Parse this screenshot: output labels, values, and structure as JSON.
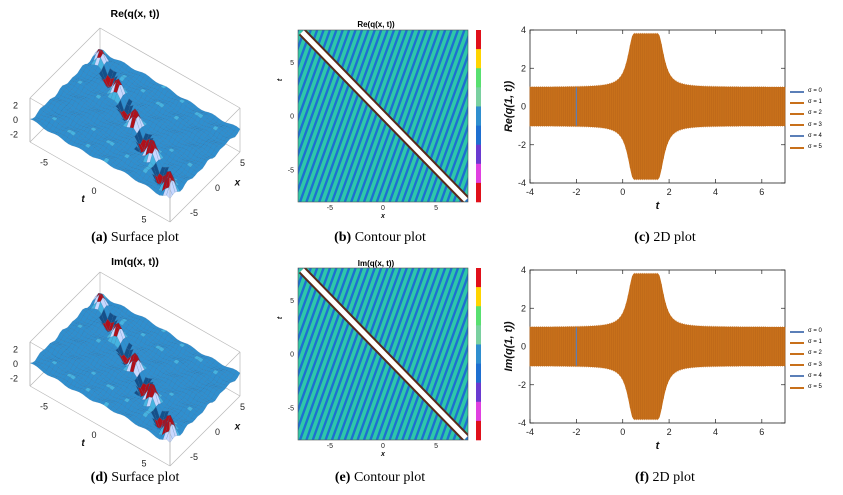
{
  "panels": {
    "a": {
      "title": "Re(q(x, t))",
      "caption_label": "(a)",
      "caption_text": "Surface plot"
    },
    "b": {
      "title": "Re(q(x, t))",
      "caption_label": "(b)",
      "caption_text": "Contour plot"
    },
    "c": {
      "title": "",
      "caption_label": "(c)",
      "caption_text": "2D plot"
    },
    "d": {
      "title": "Im(q(x, t))",
      "caption_label": "(d)",
      "caption_text": "Surface plot"
    },
    "e": {
      "title": "Im(q(x, t))",
      "caption_label": "(e)",
      "caption_text": "Contour plot"
    },
    "f": {
      "title": "",
      "caption_label": "(f)",
      "caption_text": "2D plot"
    }
  },
  "colors": {
    "surface_base": "#2f8fcf",
    "surface_dark": "#14508a",
    "surface_peak": "#b0101a",
    "contour_green": "#2fc7a8",
    "contour_blue": "#1e6fd0",
    "contour_white": "#ffffff",
    "line_orange": "#c8701a",
    "line_blue": "#5b7fb8",
    "colorbar": [
      "#e0101a",
      "#ffd400",
      "#58e070",
      "#7ad0a0",
      "#2f8fcf",
      "#1e6fd0",
      "#6a3ad0",
      "#e040e0",
      "#e0101a"
    ]
  },
  "chart_data": [
    {
      "id": "a",
      "type": "surface",
      "title": "Re(q(x, t))",
      "zticks": [
        "2",
        "0",
        "-2"
      ],
      "tticks": [
        "-5",
        "0",
        "5"
      ],
      "xticks": [
        "5",
        "0",
        "-5"
      ],
      "tlabel": "t",
      "xlabel": "x",
      "zlim": [
        -3,
        3
      ],
      "trange": [
        -7,
        7
      ],
      "xrange": [
        -7,
        7
      ]
    },
    {
      "id": "b",
      "type": "contour",
      "title": "Re(q(x, t))",
      "xticks": [
        "-5",
        "0",
        "5"
      ],
      "yticks": [
        "5",
        "0",
        "-5"
      ],
      "xlabel": "x",
      "ylabel": "t",
      "xlim": [
        -8,
        8
      ],
      "ylim": [
        -8,
        8
      ]
    },
    {
      "id": "c",
      "type": "line",
      "xlabel": "t",
      "ylabel": "Re(q(1, t))",
      "xlim": [
        -4,
        7
      ],
      "ylim": [
        -4,
        4
      ],
      "xticks": [
        "-4",
        "-2",
        "0",
        "2",
        "4",
        "6"
      ],
      "yticks": [
        "4",
        "2",
        "0",
        "-2",
        "-4"
      ],
      "envelope": {
        "base": 1.0,
        "peak": 3.8,
        "peak_range": [
          0.5,
          1.5
        ]
      },
      "series": [
        {
          "name": "σ = 0"
        },
        {
          "name": "σ = 1"
        },
        {
          "name": "σ = 2"
        },
        {
          "name": "σ = 3"
        },
        {
          "name": "σ = 4"
        },
        {
          "name": "σ = 5"
        }
      ]
    },
    {
      "id": "d",
      "type": "surface",
      "title": "Im(q(x, t))",
      "zticks": [
        "2",
        "0",
        "-2"
      ],
      "tticks": [
        "-5",
        "0",
        "5"
      ],
      "xticks": [
        "5",
        "0",
        "-5"
      ],
      "tlabel": "t",
      "xlabel": "x",
      "zlim": [
        -3,
        3
      ],
      "trange": [
        -7,
        7
      ],
      "xrange": [
        -7,
        7
      ]
    },
    {
      "id": "e",
      "type": "contour",
      "title": "Im(q(x, t))",
      "xticks": [
        "-5",
        "0",
        "5"
      ],
      "yticks": [
        "5",
        "0",
        "-5"
      ],
      "xlabel": "x",
      "ylabel": "t",
      "xlim": [
        -8,
        8
      ],
      "ylim": [
        -8,
        8
      ]
    },
    {
      "id": "f",
      "type": "line",
      "xlabel": "t",
      "ylabel": "Im(q(1, t))",
      "xlim": [
        -4,
        7
      ],
      "ylim": [
        -4,
        4
      ],
      "xticks": [
        "-4",
        "-2",
        "0",
        "2",
        "4",
        "6"
      ],
      "yticks": [
        "4",
        "2",
        "0",
        "-2",
        "-4"
      ],
      "envelope": {
        "base": 1.0,
        "peak": 3.8,
        "peak_range": [
          0.5,
          1.5
        ]
      },
      "series": [
        {
          "name": "σ = 0"
        },
        {
          "name": "σ = 1"
        },
        {
          "name": "σ = 2"
        },
        {
          "name": "σ = 3"
        },
        {
          "name": "σ = 4"
        },
        {
          "name": "σ = 5"
        }
      ]
    }
  ]
}
